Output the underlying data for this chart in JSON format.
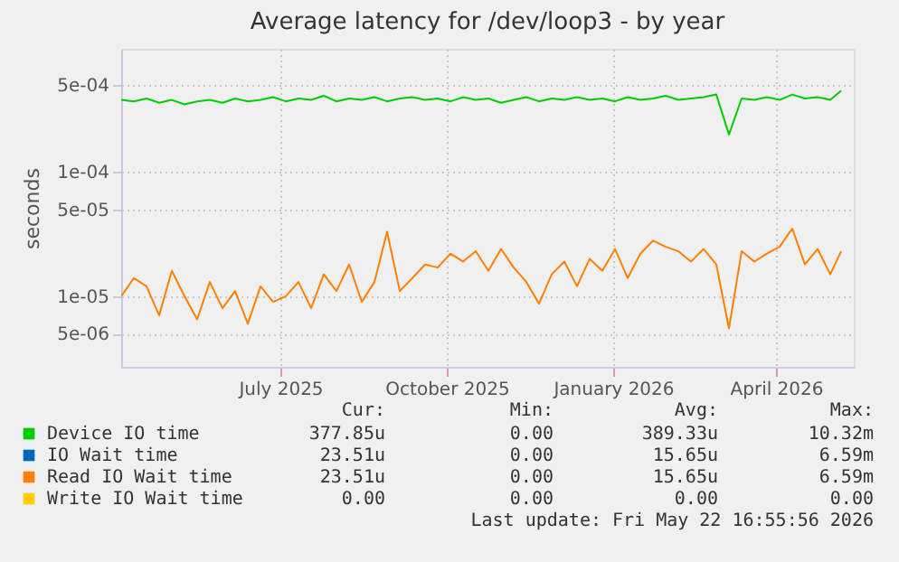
{
  "chart_data": {
    "type": "line",
    "title": "Average latency for /dev/loop3 - by year",
    "ylabel": "seconds",
    "x": [
      "2025-04-19",
      "2025-04-26",
      "2025-05-03",
      "2025-05-10",
      "2025-05-17",
      "2025-05-24",
      "2025-05-31",
      "2025-06-07",
      "2025-06-14",
      "2025-06-21",
      "2025-06-28",
      "2025-07-05",
      "2025-07-12",
      "2025-07-19",
      "2025-07-26",
      "2025-08-02",
      "2025-08-09",
      "2025-08-16",
      "2025-08-23",
      "2025-08-30",
      "2025-09-06",
      "2025-09-13",
      "2025-09-20",
      "2025-09-27",
      "2025-10-04",
      "2025-10-11",
      "2025-10-18",
      "2025-10-25",
      "2025-11-01",
      "2025-11-08",
      "2025-11-15",
      "2025-11-22",
      "2025-11-29",
      "2025-12-06",
      "2025-12-13",
      "2025-12-20",
      "2025-12-27",
      "2026-01-03",
      "2026-01-10",
      "2026-01-17",
      "2026-01-24",
      "2026-01-31",
      "2026-02-07",
      "2026-02-14",
      "2026-02-21",
      "2026-02-28",
      "2026-03-07",
      "2026-03-14",
      "2026-03-21",
      "2026-03-28",
      "2026-04-04",
      "2026-04-11",
      "2026-04-18",
      "2026-04-25",
      "2026-05-02",
      "2026-05-09",
      "2026-05-16",
      "2026-05-22"
    ],
    "series": [
      {
        "name": "Device IO time",
        "color": "#00cc00",
        "values": [
          0.00038,
          0.00037,
          0.00039,
          0.00036,
          0.00038,
          0.00035,
          0.00037,
          0.00038,
          0.00036,
          0.00039,
          0.00037,
          0.00038,
          0.0004,
          0.00037,
          0.00039,
          0.00038,
          0.00041,
          0.00037,
          0.00039,
          0.00038,
          0.0004,
          0.00037,
          0.00039,
          0.0004,
          0.00038,
          0.00039,
          0.00037,
          0.0004,
          0.00038,
          0.00039,
          0.00036,
          0.00038,
          0.0004,
          0.00037,
          0.00039,
          0.00038,
          0.0004,
          0.00038,
          0.00039,
          0.00037,
          0.0004,
          0.00038,
          0.00039,
          0.00041,
          0.00038,
          0.00039,
          0.0004,
          0.00042,
          0.0002,
          0.00039,
          0.00038,
          0.0004,
          0.00038,
          0.00042,
          0.00039,
          0.0004,
          0.00038,
          0.00045
        ]
      },
      {
        "name": "IO Wait time",
        "color": "#0066b3",
        "values": [
          null,
          null,
          null,
          null,
          null,
          null,
          null,
          null,
          null,
          null,
          null,
          null,
          null,
          null,
          null,
          null,
          null,
          null,
          null,
          null,
          null,
          null,
          null,
          null,
          null,
          null,
          null,
          null,
          null,
          null,
          null,
          null,
          null,
          null,
          null,
          null,
          null,
          null,
          null,
          null,
          null,
          null,
          null,
          null,
          null,
          null,
          null,
          null,
          null,
          null,
          null,
          null,
          null,
          null,
          null,
          null,
          null,
          null
        ]
      },
      {
        "name": "Read IO Wait time",
        "color": "#ff8000",
        "values": [
          1e-05,
          1.4e-05,
          1.2e-05,
          7e-06,
          1.6e-05,
          1e-05,
          6.5e-06,
          1.3e-05,
          8e-06,
          1.1e-05,
          6e-06,
          1.2e-05,
          9e-06,
          1e-05,
          1.3e-05,
          8e-06,
          1.5e-05,
          1.1e-05,
          1.8e-05,
          9e-06,
          1.3e-05,
          3.3e-05,
          1.1e-05,
          1.4e-05,
          1.8e-05,
          1.7e-05,
          2.2e-05,
          1.9e-05,
          2.3e-05,
          1.6e-05,
          2.4e-05,
          1.7e-05,
          1.3e-05,
          8.7e-06,
          1.5e-05,
          1.9e-05,
          1.2e-05,
          2e-05,
          1.6e-05,
          2.4e-05,
          1.4e-05,
          2.2e-05,
          2.8e-05,
          2.5e-05,
          2.3e-05,
          1.9e-05,
          2.4e-05,
          1.8e-05,
          5.5e-06,
          2.3e-05,
          1.9e-05,
          2.2e-05,
          2.5e-05,
          3.5e-05,
          1.8e-05,
          2.4e-05,
          1.5e-05,
          2.3e-05
        ]
      },
      {
        "name": "Write IO Wait time",
        "color": "#ffcc00",
        "values": [
          null,
          null,
          null,
          null,
          null,
          null,
          null,
          null,
          null,
          null,
          null,
          null,
          null,
          null,
          null,
          null,
          null,
          null,
          null,
          null,
          null,
          null,
          null,
          null,
          null,
          null,
          null,
          null,
          null,
          null,
          null,
          null,
          null,
          null,
          null,
          null,
          null,
          null,
          null,
          null,
          null,
          null,
          null,
          null,
          null,
          null,
          null,
          null,
          null,
          null,
          null,
          null,
          null,
          null,
          null,
          null,
          null,
          null
        ]
      }
    ],
    "xlim": [
      "2025-04-19",
      "2026-05-29"
    ],
    "xticks": [
      {
        "value": "2025-07-16",
        "label": "July 2025"
      },
      {
        "value": "2025-10-16",
        "label": "October 2025"
      },
      {
        "value": "2026-01-16",
        "label": "January 2026"
      },
      {
        "value": "2026-04-16",
        "label": "April 2026"
      }
    ],
    "log": true,
    "ylim": [
      2.7e-06,
      0.00098
    ],
    "yticks": [
      {
        "value": 5e-06,
        "label": "5e-06"
      },
      {
        "value": 1e-05,
        "label": "1e-05"
      },
      {
        "value": 5e-05,
        "label": "5e-05"
      },
      {
        "value": 0.0001,
        "label": "1e-04"
      },
      {
        "value": 0.0005,
        "label": "5e-04"
      }
    ],
    "grid": true,
    "legend": "bottom",
    "marker": "none",
    "line_style": "solid",
    "annotations": [
      "Cur:",
      "Min:",
      "Avg:",
      "Max:",
      "377.85u",
      "0.00",
      "389.33u",
      "10.32m",
      "23.51u",
      "0.00",
      "15.65u",
      "6.59m",
      "23.51u",
      "0.00",
      "15.65u",
      "6.59m",
      "0.00",
      "0.00",
      "0.00",
      "0.00",
      "Last update: Fri May 22 16:55:56 2026"
    ]
  }
}
